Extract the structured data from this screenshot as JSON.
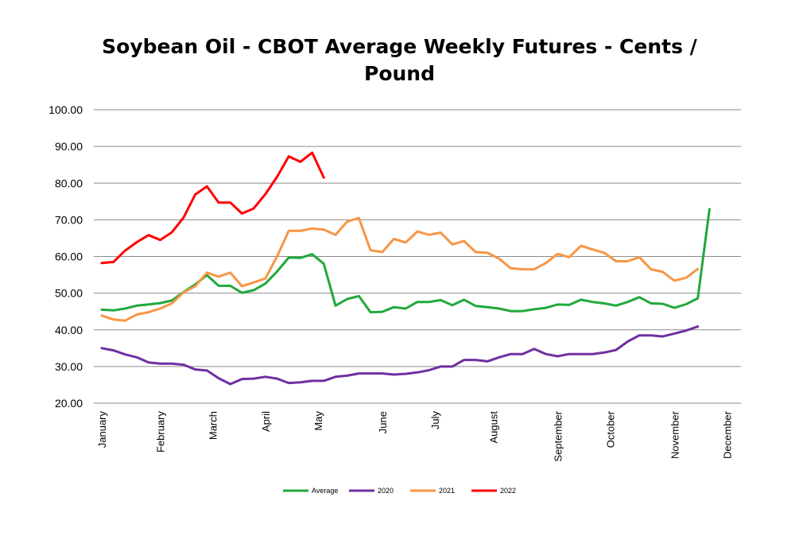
{
  "chart_data": {
    "type": "line",
    "title_line1": "Soybean Oil - CBOT Average Weekly Futures - Cents /",
    "title_line2": "Pound",
    "xlabel": "",
    "ylabel": "",
    "ylim": [
      20,
      100
    ],
    "yticks": [
      "20.00",
      "30.00",
      "40.00",
      "50.00",
      "60.00",
      "70.00",
      "80.00",
      "90.00",
      "100.00"
    ],
    "x_month_labels": [
      {
        "label": "January",
        "week": 1
      },
      {
        "label": "February",
        "week": 6
      },
      {
        "label": "March",
        "week": 10.5
      },
      {
        "label": "April",
        "week": 15
      },
      {
        "label": "May",
        "week": 19.5
      },
      {
        "label": "June",
        "week": 25
      },
      {
        "label": "July",
        "week": 29.5
      },
      {
        "label": "August",
        "week": 34.5
      },
      {
        "label": "September",
        "week": 40
      },
      {
        "label": "October",
        "week": 44.5
      },
      {
        "label": "November",
        "week": 50
      },
      {
        "label": "December",
        "week": 54.5
      }
    ],
    "grid": true,
    "legend_position": "bottom",
    "series": [
      {
        "name": "Average",
        "color": "#22a83c",
        "values": [
          45.5,
          45.3,
          45.8,
          46.6,
          46.9,
          47.3,
          48.0,
          50.3,
          52.4,
          54.9,
          52.0,
          52.0,
          50.1,
          50.8,
          52.6,
          55.9,
          59.7,
          59.6,
          60.6,
          58.0,
          46.6,
          48.4,
          49.2,
          44.8,
          44.9,
          46.2,
          45.8,
          47.6,
          47.6,
          48.1,
          46.7,
          48.2,
          46.5,
          46.2,
          45.8,
          45.1,
          45.1,
          45.6,
          46.0,
          46.9,
          46.8,
          48.2,
          47.6,
          47.2,
          46.6,
          47.6,
          48.9,
          47.2,
          47.1,
          46.0,
          47.0,
          48.6,
          72.9
        ]
      },
      {
        "name": "2020",
        "color": "#7030a0",
        "values": [
          35.0,
          34.4,
          33.3,
          32.5,
          31.1,
          30.8,
          30.8,
          30.5,
          29.2,
          28.9,
          26.8,
          25.2,
          26.6,
          26.7,
          27.2,
          26.7,
          25.5,
          25.7,
          26.1,
          26.1,
          27.2,
          27.5,
          28.1,
          28.1,
          28.1,
          27.8,
          28.0,
          28.4,
          29.0,
          30.0,
          30.0,
          31.8,
          31.8,
          31.4,
          32.5,
          33.4,
          33.4,
          34.8,
          33.4,
          32.8,
          33.4,
          33.4,
          33.4,
          33.8,
          34.5,
          36.8,
          38.5,
          38.5,
          38.2,
          39.0,
          39.8,
          40.9
        ]
      },
      {
        "name": "2021",
        "color": "#f79646",
        "values": [
          43.9,
          42.8,
          42.5,
          44.2,
          44.8,
          45.8,
          47.2,
          50.2,
          51.9,
          55.6,
          54.5,
          55.6,
          51.9,
          52.9,
          54.0,
          60.0,
          67.0,
          67.0,
          67.6,
          67.3,
          65.9,
          69.5,
          70.5,
          61.7,
          61.2,
          64.8,
          63.8,
          66.8,
          65.9,
          66.5,
          63.3,
          64.2,
          61.2,
          61.0,
          59.4,
          56.8,
          56.5,
          56.5,
          58.2,
          60.7,
          59.8,
          62.9,
          61.9,
          61.0,
          58.7,
          58.7,
          59.8,
          56.5,
          55.8,
          53.4,
          54.2,
          56.6
        ]
      },
      {
        "name": "2022",
        "color": "#ff0000",
        "values": [
          58.2,
          58.5,
          61.6,
          63.9,
          65.8,
          64.5,
          66.6,
          70.6,
          76.9,
          79.1,
          74.7,
          74.7,
          71.7,
          73.1,
          77.0,
          81.7,
          87.3,
          85.8,
          88.3,
          81.5
        ]
      }
    ]
  }
}
